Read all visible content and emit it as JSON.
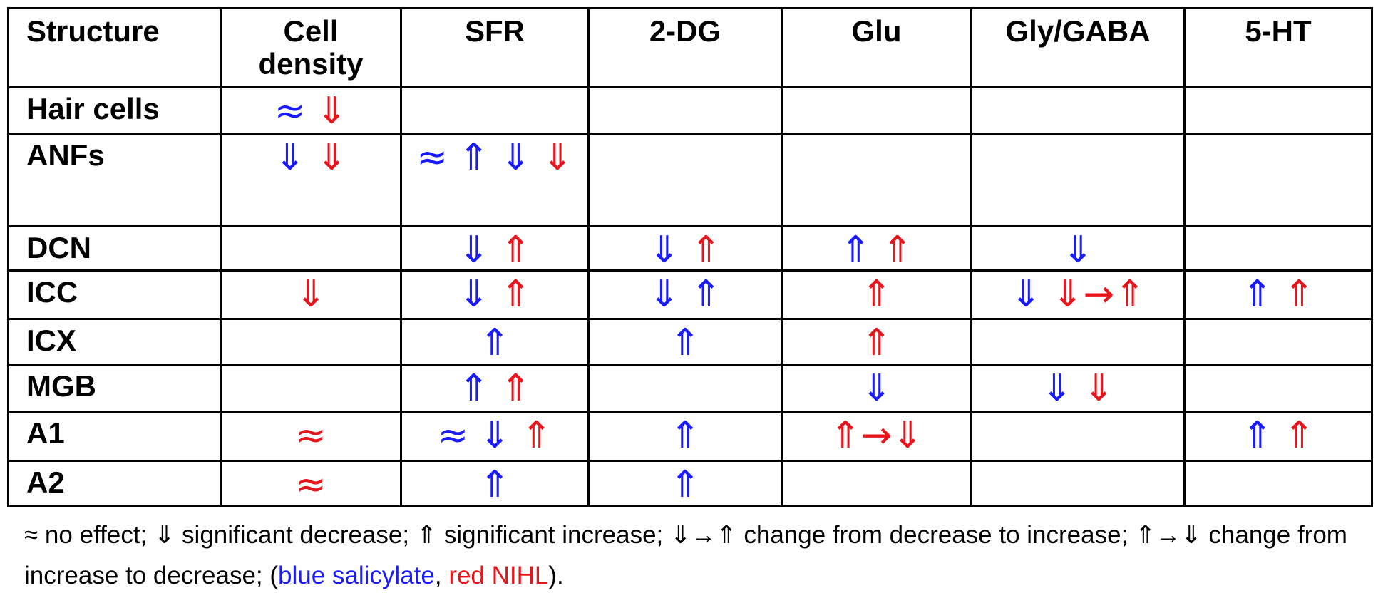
{
  "table": {
    "header": [
      "Structure",
      "Cell density",
      "SFR",
      "2-DG",
      "Glu",
      "Gly/GABA",
      "5-HT"
    ],
    "rows": [
      {
        "label": "Hair cells",
        "cells": [
          [
            {
              "symbol": "≈",
              "color": "#1a1aff"
            },
            {
              "symbol": "⇓",
              "color": "#e8141c"
            }
          ],
          [],
          [],
          [],
          [],
          []
        ]
      },
      {
        "label": "ANFs",
        "cells": [
          [
            {
              "symbol": "⇓",
              "color": "#1a1aff"
            },
            {
              "symbol": "⇓",
              "color": "#e8141c"
            }
          ],
          [
            {
              "symbol": "≈",
              "color": "#1a1aff"
            },
            {
              "symbol": "⇑",
              "color": "#1a1aff"
            },
            {
              "symbol": "⇓",
              "color": "#1a1aff"
            },
            {
              "symbol": "⇓",
              "color": "#e8141c"
            }
          ],
          [],
          [],
          [],
          []
        ]
      },
      {
        "label": "DCN",
        "cells": [
          [],
          [
            {
              "symbol": "⇓",
              "color": "#1a1aff"
            },
            {
              "symbol": "⇑",
              "color": "#e8141c"
            }
          ],
          [
            {
              "symbol": "⇓",
              "color": "#1a1aff"
            },
            {
              "symbol": "⇑",
              "color": "#e8141c"
            }
          ],
          [
            {
              "symbol": "⇑",
              "color": "#1a1aff"
            },
            {
              "symbol": "⇑",
              "color": "#e8141c"
            }
          ],
          [
            {
              "symbol": "⇓",
              "color": "#1a1aff"
            }
          ],
          []
        ]
      },
      {
        "label": "ICC",
        "cells": [
          [
            {
              "symbol": "⇓",
              "color": "#e8141c"
            }
          ],
          [
            {
              "symbol": "⇓",
              "color": "#1a1aff"
            },
            {
              "symbol": "⇑",
              "color": "#e8141c"
            }
          ],
          [
            {
              "symbol": "⇓",
              "color": "#1a1aff"
            },
            {
              "symbol": "⇑",
              "color": "#1a1aff"
            }
          ],
          [
            {
              "symbol": "⇑",
              "color": "#e8141c"
            }
          ],
          [
            {
              "symbol": "⇓",
              "color": "#1a1aff"
            },
            {
              "symbol": "⇓→⇑",
              "color": "#e8141c"
            }
          ],
          [
            {
              "symbol": "⇑",
              "color": "#1a1aff"
            },
            {
              "symbol": "⇑",
              "color": "#e8141c"
            }
          ]
        ]
      },
      {
        "label": "ICX",
        "cells": [
          [],
          [
            {
              "symbol": "⇑",
              "color": "#1a1aff"
            }
          ],
          [
            {
              "symbol": "⇑",
              "color": "#1a1aff"
            }
          ],
          [
            {
              "symbol": "⇑",
              "color": "#e8141c"
            }
          ],
          [],
          []
        ]
      },
      {
        "label": "MGB",
        "cells": [
          [],
          [
            {
              "symbol": "⇑",
              "color": "#1a1aff"
            },
            {
              "symbol": "⇑",
              "color": "#e8141c"
            }
          ],
          [],
          [
            {
              "symbol": "⇓",
              "color": "#1a1aff"
            }
          ],
          [
            {
              "symbol": "⇓",
              "color": "#1a1aff"
            },
            {
              "symbol": "⇓",
              "color": "#e8141c"
            }
          ],
          []
        ]
      },
      {
        "label": "A1",
        "cells": [
          [
            {
              "symbol": "≈",
              "color": "#e8141c"
            }
          ],
          [
            {
              "symbol": "≈",
              "color": "#1a1aff"
            },
            {
              "symbol": "⇓",
              "color": "#1a1aff"
            },
            {
              "symbol": "⇑",
              "color": "#e8141c"
            }
          ],
          [
            {
              "symbol": "⇑",
              "color": "#1a1aff"
            }
          ],
          [
            {
              "symbol": "⇑→⇓",
              "color": "#e8141c"
            }
          ],
          [],
          [
            {
              "symbol": "⇑",
              "color": "#1a1aff"
            },
            {
              "symbol": "⇑",
              "color": "#e8141c"
            }
          ]
        ]
      },
      {
        "label": "A2",
        "cells": [
          [
            {
              "symbol": "≈",
              "color": "#e8141c"
            }
          ],
          [
            {
              "symbol": "⇑",
              "color": "#1a1aff"
            }
          ],
          [
            {
              "symbol": "⇑",
              "color": "#1a1aff"
            }
          ],
          [],
          [],
          []
        ]
      }
    ]
  },
  "footnote": {
    "parts": [
      {
        "text": "≈ no effect; ⇓ significant decrease; ⇑ significant increase; ⇓→⇑ change from decrease to increase; ⇑→⇓ change from increase to decrease; (",
        "color": "#000000"
      },
      {
        "text": "blue salicylate",
        "color": "#1a1aff"
      },
      {
        "text": ", ",
        "color": "#000000"
      },
      {
        "text": "red NIHL",
        "color": "#e8141c"
      },
      {
        "text": ").",
        "color": "#000000"
      }
    ]
  }
}
